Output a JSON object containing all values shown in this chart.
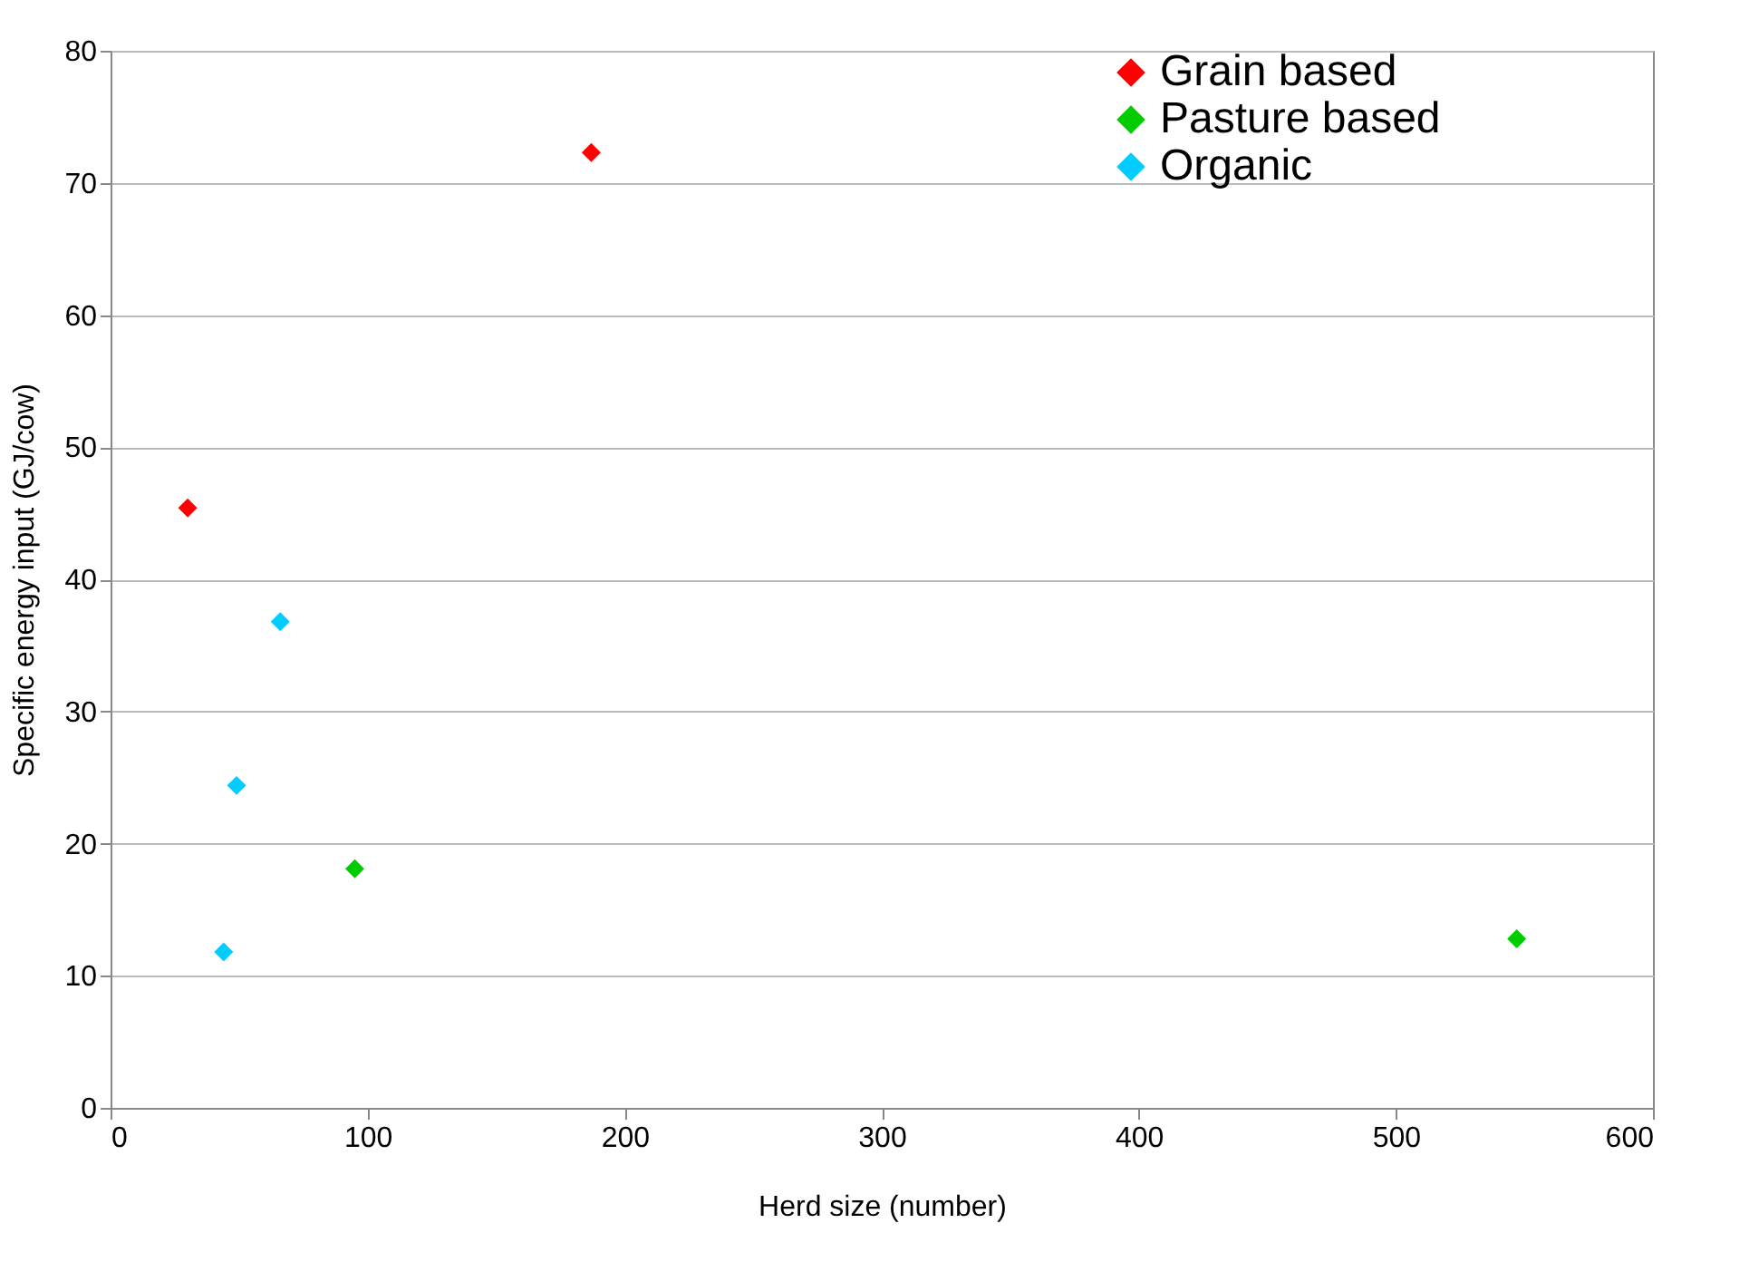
{
  "chart_data": {
    "type": "scatter",
    "xlabel": "Herd size (number)",
    "ylabel": "Specific energy input (GJ/cow)",
    "series": [
      {
        "name": "Grain based",
        "color": "#ff0000",
        "x": [
          30,
          187
        ],
        "values": [
          45.4,
          72.3
        ]
      },
      {
        "name": "Pasture based",
        "color": "#00cc00",
        "x": [
          95,
          547
        ],
        "values": [
          18.1,
          12.8
        ]
      },
      {
        "name": "Organic",
        "color": "#00ccff",
        "x": [
          66,
          49,
          44
        ],
        "values": [
          36.8,
          24.4,
          11.8
        ]
      }
    ],
    "xlim": [
      0,
      600
    ],
    "xticks": [
      0,
      100,
      200,
      300,
      400,
      500,
      600
    ],
    "ylim": [
      0,
      80
    ],
    "yticks": [
      0,
      10,
      20,
      30,
      40,
      50,
      60,
      70,
      80
    ],
    "grid": "y",
    "legend": "right",
    "marker": "diamond"
  }
}
